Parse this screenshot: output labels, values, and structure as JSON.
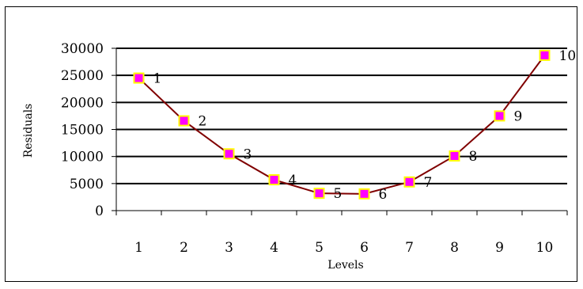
{
  "chart_data": {
    "type": "line",
    "title": "",
    "xlabel": "Levels",
    "ylabel": "Residuals",
    "categories": [
      "1",
      "2",
      "3",
      "4",
      "5",
      "6",
      "7",
      "8",
      "9",
      "10"
    ],
    "series": [
      {
        "values": [
          24500,
          16600,
          10500,
          5700,
          3200,
          3100,
          5300,
          10100,
          17500,
          28700
        ],
        "point_labels": [
          "1",
          "2",
          "3",
          "4",
          "5",
          "6",
          "7",
          "8",
          "9",
          "10"
        ]
      }
    ],
    "ylim": [
      0,
      30000
    ],
    "yticks": [
      "0",
      "5000",
      "10000",
      "15000",
      "20000",
      "25000",
      "30000"
    ],
    "grid": true,
    "legend": "none",
    "colors": {
      "line": "#800000",
      "marker_fill": "#ff00ff",
      "marker_edge": "#ffff00",
      "grid": "#000000"
    }
  }
}
